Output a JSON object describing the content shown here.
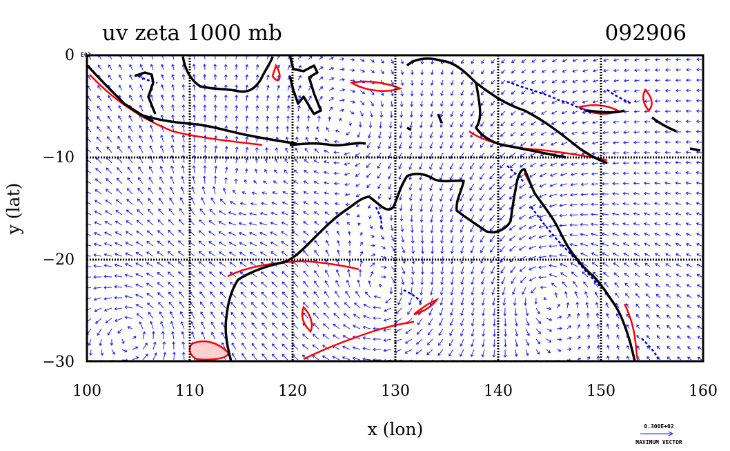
{
  "title_left": "uv zeta 1000 mb",
  "title_right": "092906",
  "corner_label": "E02",
  "legend": {
    "vector_magnitude": "0.300E+02",
    "vector_label": "MAXIMUM VECTOR"
  },
  "colors": {
    "vectors": "#1a1aff",
    "positive_contour": "#ff0000",
    "negative_contour": "#0000cc",
    "coastline": "#000000",
    "grid": "#000000"
  },
  "chart_data": {
    "type": "vector field map",
    "xlabel": "x (lon)",
    "ylabel": "y (lat)",
    "xlim": [
      100,
      160
    ],
    "ylim": [
      -30,
      0
    ],
    "x_ticks": [
      "100",
      "110",
      "120",
      "130",
      "140",
      "150",
      "160"
    ],
    "y_ticks": [
      "0",
      "−10",
      "−20",
      "−30"
    ],
    "grid": true
  }
}
